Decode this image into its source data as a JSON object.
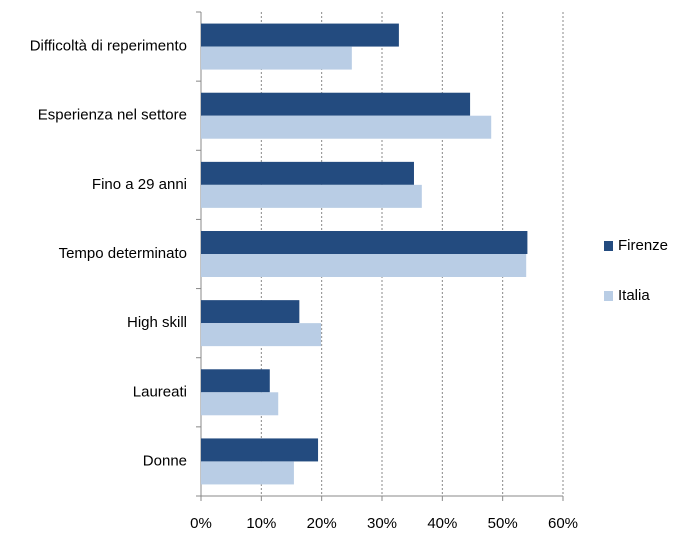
{
  "chart_data": {
    "type": "hbar",
    "categories": [
      "Difficoltà di reperimento",
      "Esperienza nel settore",
      "Fino a 29 anni",
      "Tempo determinato",
      "High skill",
      "Laureati",
      "Donne"
    ],
    "series": [
      {
        "name": "Firenze",
        "color": "#234b7f",
        "values": [
          32.8,
          44.6,
          35.3,
          54.1,
          16.3,
          11.4,
          19.4
        ]
      },
      {
        "name": "Italia",
        "color": "#b9cde5",
        "values": [
          25.0,
          48.1,
          36.6,
          53.9,
          19.9,
          12.8,
          15.4
        ]
      }
    ],
    "xlim": [
      0,
      60
    ],
    "xticks": [
      {
        "value": 0,
        "label": "0%"
      },
      {
        "value": 10,
        "label": "10%"
      },
      {
        "value": 20,
        "label": "20%"
      },
      {
        "value": 30,
        "label": "30%"
      },
      {
        "value": 40,
        "label": "40%"
      },
      {
        "value": 50,
        "label": "50%"
      },
      {
        "value": 60,
        "label": "60%"
      }
    ],
    "grid": true,
    "legend": "right"
  }
}
